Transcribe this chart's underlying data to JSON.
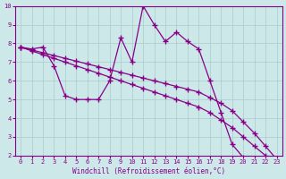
{
  "background_color": "#cce8e8",
  "line_color": "#880088",
  "marker": "+",
  "markersize": 4,
  "linewidth": 0.9,
  "markeredgewidth": 1.0,
  "series": [
    {
      "x": [
        0,
        1,
        2,
        3,
        4,
        5,
        6,
        7,
        8,
        9,
        10,
        11,
        12,
        13,
        14,
        15,
        16,
        17,
        18,
        19,
        20,
        21
      ],
      "y": [
        7.8,
        7.7,
        7.8,
        6.8,
        5.2,
        5.0,
        5.0,
        5.0,
        6.0,
        8.3,
        7.0,
        10.0,
        9.0,
        8.1,
        8.6,
        8.1,
        7.7,
        6.0,
        4.3,
        2.6,
        1.9,
        1.8
      ]
    },
    {
      "x": [
        0,
        1,
        2,
        3,
        4,
        5,
        6,
        7,
        8,
        9,
        10,
        11,
        12,
        13,
        14,
        15,
        16,
        17,
        18,
        19,
        20,
        21,
        22,
        23
      ],
      "y": [
        7.8,
        7.65,
        7.5,
        7.35,
        7.2,
        7.05,
        6.9,
        6.75,
        6.6,
        6.45,
        6.3,
        6.15,
        6.0,
        5.85,
        5.7,
        5.55,
        5.4,
        5.1,
        4.8,
        4.4,
        3.8,
        3.2,
        2.5,
        1.8
      ]
    },
    {
      "x": [
        0,
        1,
        2,
        3,
        4,
        5,
        6,
        7,
        8,
        9,
        10,
        11,
        12,
        13,
        14,
        15,
        16,
        17,
        18,
        19,
        20,
        21,
        22,
        23
      ],
      "y": [
        7.8,
        7.6,
        7.4,
        7.2,
        7.0,
        6.8,
        6.6,
        6.4,
        6.2,
        6.0,
        5.8,
        5.6,
        5.4,
        5.2,
        5.0,
        4.8,
        4.6,
        4.3,
        3.9,
        3.5,
        3.0,
        2.5,
        2.0,
        1.7
      ]
    }
  ],
  "xlim": [
    -0.5,
    23.5
  ],
  "ylim": [
    2,
    10
  ],
  "xticks": [
    0,
    1,
    2,
    3,
    4,
    5,
    6,
    7,
    8,
    9,
    10,
    11,
    12,
    13,
    14,
    15,
    16,
    17,
    18,
    19,
    20,
    21,
    22,
    23
  ],
  "yticks": [
    2,
    3,
    4,
    5,
    6,
    7,
    8,
    9,
    10
  ],
  "xlabel": "Windchill (Refroidissement éolien,°C)",
  "xlabel_color": "#880088",
  "tick_color": "#880088",
  "grid_color": "#aacccc",
  "axis_color": "#880088",
  "tick_fontsize": 5,
  "xlabel_fontsize": 5.5
}
